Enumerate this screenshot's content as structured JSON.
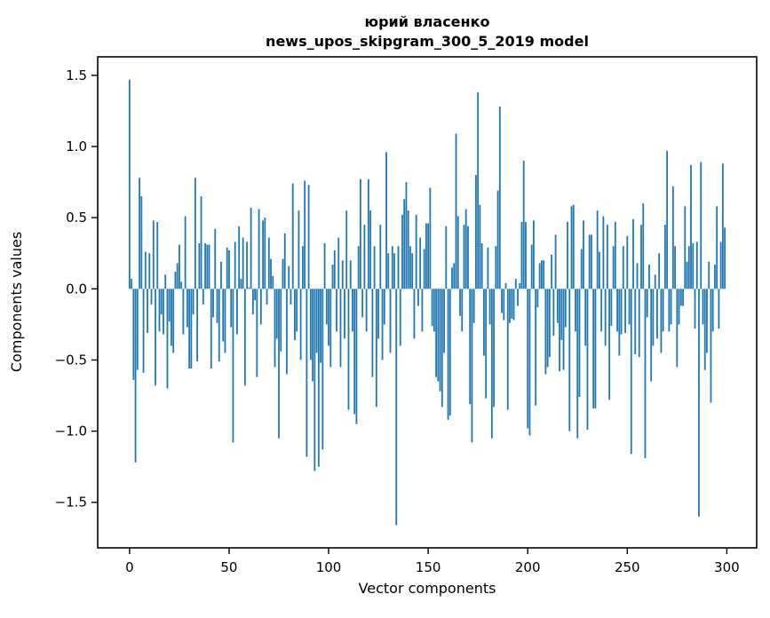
{
  "figure": {
    "title_line1": "юрий власенко",
    "title_line2": "news_upos_skipgram_300_5_2019 model",
    "xlabel": "Vector components",
    "ylabel": "Components values"
  },
  "chart_data": {
    "type": "bar",
    "title": "юрий власенко",
    "subtitle": "news_upos_skipgram_300_5_2019 model",
    "xlabel": "Vector components",
    "ylabel": "Components values",
    "legend": null,
    "grid": false,
    "bar_color": "#1f77b4",
    "axis_color": "#000000",
    "n_components": 300,
    "x_start": 0,
    "xlim": [
      -16,
      315
    ],
    "ylim": [
      -1.82,
      1.63
    ],
    "xticks": [
      {
        "v": 0,
        "label": "0"
      },
      {
        "v": 50,
        "label": "50"
      },
      {
        "v": 100,
        "label": "100"
      },
      {
        "v": 150,
        "label": "150"
      },
      {
        "v": 200,
        "label": "200"
      },
      {
        "v": 250,
        "label": "250"
      },
      {
        "v": 300,
        "label": "300"
      }
    ],
    "yticks": [
      {
        "v": 1.5,
        "label": "1.5"
      },
      {
        "v": 1.0,
        "label": "1.0"
      },
      {
        "v": 0.5,
        "label": "0.5"
      },
      {
        "v": 0.0,
        "label": "0.0"
      },
      {
        "v": -0.5,
        "label": "−0.5"
      },
      {
        "v": -1.0,
        "label": "−1.0"
      },
      {
        "v": -1.5,
        "label": "−1.5"
      }
    ],
    "values": [
      1.47,
      0.07,
      -0.64,
      -1.22,
      -0.57,
      0.78,
      0.65,
      -0.59,
      0.26,
      -0.31,
      0.25,
      -0.11,
      0.48,
      -0.68,
      0.47,
      -0.3,
      -0.18,
      -0.32,
      0.1,
      -0.7,
      -0.23,
      -0.4,
      -0.45,
      0.12,
      0.18,
      0.31,
      0.05,
      -0.32,
      0.51,
      -0.27,
      -0.56,
      -0.56,
      -0.18,
      0.78,
      -0.51,
      0.32,
      0.65,
      -0.11,
      0.32,
      0.31,
      0.31,
      -0.56,
      -0.2,
      0.42,
      -0.24,
      -0.51,
      0.19,
      -0.37,
      -0.45,
      0.29,
      0.27,
      -0.27,
      -1.08,
      0.33,
      -0.32,
      0.44,
      0.07,
      0.36,
      -0.68,
      0.33,
      0.01,
      0.57,
      -0.18,
      -0.08,
      -0.62,
      0.56,
      -0.25,
      0.48,
      0.5,
      -0.11,
      0.36,
      0.21,
      0.09,
      -0.55,
      -0.35,
      -1.05,
      -0.44,
      0.21,
      0.39,
      -0.6,
      0.16,
      -0.11,
      0.74,
      -0.36,
      -0.3,
      0.55,
      -0.5,
      0.3,
      0.76,
      -1.18,
      0.73,
      -0.5,
      -0.65,
      -1.28,
      -0.45,
      -1.25,
      -0.52,
      -1.13,
      0.32,
      -0.25,
      -0.4,
      -0.55,
      0.17,
      0.27,
      -0.3,
      0.36,
      -0.55,
      0.2,
      -0.35,
      0.55,
      -0.85,
      0.2,
      -0.3,
      -0.88,
      -0.95,
      0.3,
      0.77,
      -0.2,
      0.45,
      -0.3,
      0.77,
      0.55,
      -0.62,
      0.3,
      -0.83,
      -0.35,
      0.45,
      -0.5,
      -0.25,
      0.96,
      0.25,
      -0.45,
      0.3,
      0.25,
      -1.66,
      0.3,
      -0.4,
      0.52,
      0.63,
      0.75,
      0.55,
      0.3,
      0.25,
      -0.35,
      0.52,
      -0.12,
      0.36,
      -0.3,
      0.28,
      0.46,
      0.46,
      0.71,
      -0.26,
      -0.3,
      -0.62,
      -0.65,
      -0.72,
      -0.83,
      -0.45,
      0.44,
      -0.92,
      -0.89,
      0.15,
      0.18,
      1.09,
      0.51,
      -0.19,
      -0.3,
      0.45,
      0.56,
      0.44,
      -0.81,
      -1.08,
      -0.24,
      0.8,
      1.38,
      0.59,
      0.32,
      -0.47,
      -0.77,
      0.29,
      -0.25,
      -1.05,
      -0.83,
      0.3,
      0.69,
      1.28,
      -0.17,
      -0.22,
      0.04,
      -0.85,
      -0.24,
      -0.21,
      -0.22,
      0.07,
      -0.12,
      0.04,
      0.47,
      0.9,
      0.47,
      -0.98,
      -1.03,
      0.31,
      0.48,
      -0.82,
      -0.13,
      0.18,
      0.2,
      0.2,
      -0.6,
      -0.55,
      -0.48,
      0.24,
      -0.33,
      0.38,
      -0.24,
      -0.58,
      -0.36,
      -0.57,
      -0.27,
      0.47,
      -1.0,
      0.58,
      0.59,
      -0.3,
      -1.05,
      -0.76,
      0.28,
      0.48,
      -0.4,
      -0.99,
      0.38,
      0.38,
      -0.84,
      -0.84,
      0.55,
      0.26,
      -0.3,
      0.51,
      -0.4,
      0.45,
      -0.78,
      -0.26,
      0.3,
      0.47,
      -0.3,
      -0.47,
      -0.32,
      0.3,
      -0.31,
      0.37,
      -0.25,
      -1.16,
      0.49,
      -0.46,
      0.18,
      -0.48,
      0.45,
      0.6,
      -1.19,
      -0.2,
      0.17,
      -0.65,
      -0.4,
      0.1,
      -0.35,
      0.25,
      -0.45,
      -0.3,
      0.45,
      0.97,
      -0.3,
      -0.25,
      0.72,
      0.3,
      -0.55,
      -0.25,
      -0.12,
      -0.12,
      0.58,
      0.19,
      0.3,
      0.87,
      0.32,
      -0.28,
      0.33,
      -1.6,
      0.89,
      -0.25,
      -0.57,
      -0.45,
      0.19,
      -0.8,
      -0.3,
      0.17,
      0.58,
      -0.28,
      0.33,
      0.88,
      0.43
    ]
  }
}
